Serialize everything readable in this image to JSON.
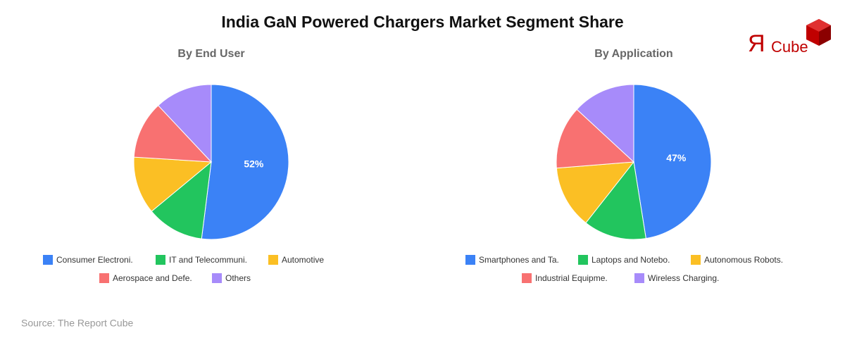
{
  "title": "India GaN Powered Chargers Market Segment Share",
  "logo": {
    "mark": "Я",
    "text": "Cube"
  },
  "source": "Source: The Report Cube",
  "chart_data": [
    {
      "type": "pie",
      "title": "By End User",
      "categories": [
        "Consumer Electroni.",
        "IT and Telecommuni.",
        "Automotive",
        "Aerospace and Defe.",
        "Others"
      ],
      "values": [
        52,
        12,
        12,
        12,
        12
      ],
      "value_labels": [
        "52%",
        null,
        null,
        null,
        null
      ],
      "colors": [
        "#3b82f6",
        "#22c55e",
        "#fbbf24",
        "#f87171",
        "#a78bfa"
      ]
    },
    {
      "type": "pie",
      "title": "By Application",
      "categories": [
        "Smartphones and Ta.",
        "Laptops and Notebo.",
        "Autonomous Robots.",
        "Industrial Equipme.",
        "Wireless Charging."
      ],
      "values": [
        47,
        13,
        13,
        13,
        13
      ],
      "value_labels": [
        "47%",
        null,
        null,
        null,
        null
      ],
      "colors": [
        "#3b82f6",
        "#22c55e",
        "#fbbf24",
        "#f87171",
        "#a78bfa"
      ]
    }
  ]
}
